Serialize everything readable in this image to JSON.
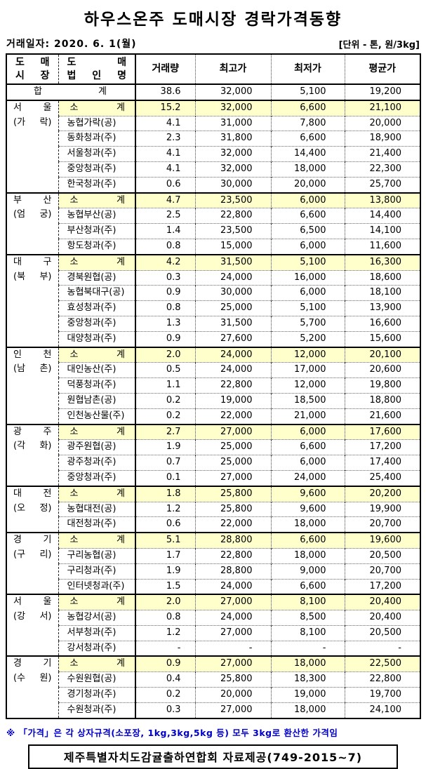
{
  "page": {
    "title": "하우스온주 도매시장 경락가격동향",
    "date_label": "거래일자: 2020. 6. 1(월)",
    "unit_label": "[단위 - 톤, 원/3kg]",
    "footnote": "※ 「가격」은 각 상자규격(소포장, 1kg,3kg,5kg 등) 모두 3kg로 환산한 가격임",
    "source": "제주특별자치도감귤출하연합회 자료제공(749-2015~7)"
  },
  "colors": {
    "highlight": "#FFFFCC",
    "note_blue": "#0000CC",
    "border": "#000000"
  },
  "table": {
    "headers": {
      "market_l1": "도 매",
      "market_l2": "시 장",
      "corp_l1": "도 매",
      "corp_l2": "법 인 명",
      "volume": "거래량",
      "high": "최고가",
      "low": "최저가",
      "avg": "평균가"
    },
    "total": {
      "label": "합 계",
      "volume": "38.6",
      "high": "32,000",
      "low": "5,100",
      "avg": "19,200"
    },
    "sections": [
      {
        "market_l1": "서 울",
        "market_l2": "(가 락)",
        "rows": [
          {
            "name": "소 계",
            "subtotal": true,
            "volume": "15.2",
            "high": "32,000",
            "low": "6,600",
            "avg": "21,100"
          },
          {
            "name": "농협가락(공)",
            "subtotal": false,
            "volume": "4.1",
            "high": "31,000",
            "low": "7,800",
            "avg": "20,000"
          },
          {
            "name": "동화청과(주)",
            "subtotal": false,
            "volume": "2.3",
            "high": "31,800",
            "low": "6,600",
            "avg": "18,900"
          },
          {
            "name": "서울청과(주)",
            "subtotal": false,
            "volume": "4.1",
            "high": "32,000",
            "low": "14,400",
            "avg": "21,400"
          },
          {
            "name": "중앙청과(주)",
            "subtotal": false,
            "volume": "4.1",
            "high": "32,000",
            "low": "18,000",
            "avg": "22,300"
          },
          {
            "name": "한국청과(주)",
            "subtotal": false,
            "volume": "0.6",
            "high": "30,000",
            "low": "20,000",
            "avg": "25,700"
          }
        ]
      },
      {
        "market_l1": "부 산",
        "market_l2": "(엄 궁)",
        "rows": [
          {
            "name": "소 계",
            "subtotal": true,
            "volume": "4.7",
            "high": "23,500",
            "low": "6,000",
            "avg": "13,800"
          },
          {
            "name": "농협부산(공)",
            "subtotal": false,
            "volume": "2.5",
            "high": "22,800",
            "low": "6,600",
            "avg": "14,400"
          },
          {
            "name": "부산청과(주)",
            "subtotal": false,
            "volume": "1.4",
            "high": "23,500",
            "low": "6,500",
            "avg": "14,100"
          },
          {
            "name": "항도청과(주)",
            "subtotal": false,
            "volume": "0.8",
            "high": "15,000",
            "low": "6,000",
            "avg": "11,600"
          }
        ]
      },
      {
        "market_l1": "대 구",
        "market_l2": "(북 부)",
        "rows": [
          {
            "name": "소 계",
            "subtotal": true,
            "volume": "4.2",
            "high": "31,500",
            "low": "5,100",
            "avg": "16,300"
          },
          {
            "name": "경북원협(공)",
            "subtotal": false,
            "volume": "0.3",
            "high": "24,000",
            "low": "16,000",
            "avg": "18,600"
          },
          {
            "name": "농협북대구(공)",
            "subtotal": false,
            "volume": "0.9",
            "high": "30,000",
            "low": "6,000",
            "avg": "18,100"
          },
          {
            "name": "효성청과(주)",
            "subtotal": false,
            "volume": "0.8",
            "high": "25,000",
            "low": "5,100",
            "avg": "13,900"
          },
          {
            "name": "중앙청과(주)",
            "subtotal": false,
            "volume": "1.3",
            "high": "31,500",
            "low": "5,700",
            "avg": "16,600"
          },
          {
            "name": "대양청과(주)",
            "subtotal": false,
            "volume": "0.9",
            "high": "27,600",
            "low": "5,200",
            "avg": "15,600"
          }
        ]
      },
      {
        "market_l1": "인 천",
        "market_l2": "(남 촌)",
        "rows": [
          {
            "name": "소 계",
            "subtotal": true,
            "volume": "2.0",
            "high": "24,000",
            "low": "12,000",
            "avg": "20,100"
          },
          {
            "name": "대인농산(주)",
            "subtotal": false,
            "volume": "0.5",
            "high": "24,000",
            "low": "17,000",
            "avg": "20,600"
          },
          {
            "name": "덕풍청과(주)",
            "subtotal": false,
            "volume": "1.1",
            "high": "22,800",
            "low": "12,000",
            "avg": "19,800"
          },
          {
            "name": "원협남촌(공)",
            "subtotal": false,
            "volume": "0.2",
            "high": "19,000",
            "low": "18,500",
            "avg": "18,800"
          },
          {
            "name": "인천농산물(주)",
            "subtotal": false,
            "volume": "0.2",
            "high": "22,000",
            "low": "21,000",
            "avg": "21,600"
          }
        ]
      },
      {
        "market_l1": "광 주",
        "market_l2": "(각 화)",
        "rows": [
          {
            "name": "소 계",
            "subtotal": true,
            "volume": "2.7",
            "high": "27,000",
            "low": "6,000",
            "avg": "17,600"
          },
          {
            "name": "광주원협(공)",
            "subtotal": false,
            "volume": "1.9",
            "high": "25,000",
            "low": "6,600",
            "avg": "17,200"
          },
          {
            "name": "광주청과(주)",
            "subtotal": false,
            "volume": "0.7",
            "high": "25,000",
            "low": "6,000",
            "avg": "17,400"
          },
          {
            "name": "중앙청과(주)",
            "subtotal": false,
            "volume": "0.1",
            "high": "27,000",
            "low": "24,000",
            "avg": "25,400"
          }
        ]
      },
      {
        "market_l1": "대 전",
        "market_l2": "(오 정)",
        "rows": [
          {
            "name": "소 계",
            "subtotal": true,
            "volume": "1.8",
            "high": "25,800",
            "low": "9,600",
            "avg": "20,200"
          },
          {
            "name": "농협대전(공)",
            "subtotal": false,
            "volume": "1.2",
            "high": "25,800",
            "low": "9,600",
            "avg": "19,900"
          },
          {
            "name": "대전청과(주)",
            "subtotal": false,
            "volume": "0.6",
            "high": "22,000",
            "low": "18,000",
            "avg": "20,700"
          }
        ]
      },
      {
        "market_l1": "경 기",
        "market_l2": "(구 리)",
        "rows": [
          {
            "name": "소 계",
            "subtotal": true,
            "volume": "5.1",
            "high": "28,800",
            "low": "6,600",
            "avg": "19,600"
          },
          {
            "name": "구리농협(공)",
            "subtotal": false,
            "volume": "1.7",
            "high": "22,800",
            "low": "18,000",
            "avg": "20,500"
          },
          {
            "name": "구리청과(주)",
            "subtotal": false,
            "volume": "1.9",
            "high": "28,800",
            "low": "9,000",
            "avg": "20,700"
          },
          {
            "name": "인터넷청과(주)",
            "subtotal": false,
            "volume": "1.5",
            "high": "24,000",
            "low": "6,600",
            "avg": "17,200"
          }
        ]
      },
      {
        "market_l1": "서 울",
        "market_l2": "(강 서)",
        "rows": [
          {
            "name": "소 계",
            "subtotal": true,
            "volume": "2.0",
            "high": "27,000",
            "low": "8,100",
            "avg": "20,400"
          },
          {
            "name": "농협강서(공)",
            "subtotal": false,
            "volume": "0.8",
            "high": "24,000",
            "low": "8,500",
            "avg": "20,400"
          },
          {
            "name": "서부청과(주)",
            "subtotal": false,
            "volume": "1.2",
            "high": "27,000",
            "low": "8,100",
            "avg": "20,500"
          },
          {
            "name": "강서청과(주)",
            "subtotal": false,
            "volume": "-",
            "high": "-",
            "low": "-",
            "avg": "-"
          }
        ]
      },
      {
        "market_l1": "경 기",
        "market_l2": "(수 원)",
        "rows": [
          {
            "name": "소 계",
            "subtotal": true,
            "volume": "0.9",
            "high": "27,000",
            "low": "18,000",
            "avg": "22,500"
          },
          {
            "name": "수원원협(공)",
            "subtotal": false,
            "volume": "0.4",
            "high": "25,800",
            "low": "18,300",
            "avg": "22,800"
          },
          {
            "name": "경기청과(주)",
            "subtotal": false,
            "volume": "0.2",
            "high": "20,000",
            "low": "19,000",
            "avg": "19,700"
          },
          {
            "name": "수원청과(주)",
            "subtotal": false,
            "volume": "0.3",
            "high": "27,000",
            "low": "18,000",
            "avg": "24,100"
          }
        ]
      }
    ]
  }
}
